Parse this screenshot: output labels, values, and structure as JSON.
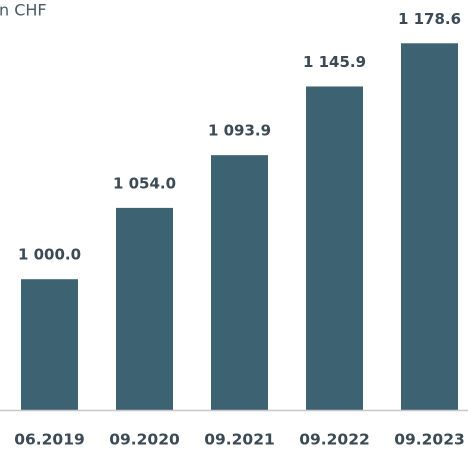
{
  "chart_data": {
    "type": "bar",
    "title": "n CHF",
    "categories": [
      "06.2019",
      "09.2020",
      "09.2021",
      "09.2022",
      "09.2023"
    ],
    "values": [
      1000.0,
      1054.0,
      1093.9,
      1145.9,
      1178.6
    ],
    "value_labels": [
      "1 000.0",
      "1 054.0",
      "1 093.9",
      "1 145.9",
      "1 178.6"
    ],
    "color": "#3d6372",
    "ylim": [
      901,
      1200
    ]
  }
}
